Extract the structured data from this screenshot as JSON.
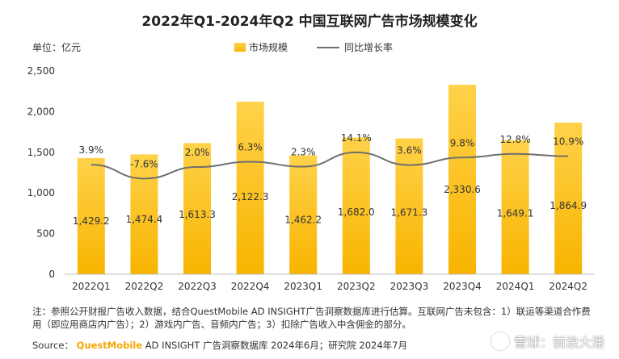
{
  "header": {
    "title": "2022年Q1-2024年Q2 中国互联网广告市场规模变化",
    "unit": "单位：亿元"
  },
  "legend": {
    "bar_label": "市场规模",
    "line_label": "同比增长率"
  },
  "chart_data": {
    "type": "bar",
    "title": "2022年Q1-2024年Q2 中国互联网广告市场规模变化",
    "categories": [
      "2022Q1",
      "2022Q2",
      "2022Q3",
      "2022Q4",
      "2023Q1",
      "2023Q2",
      "2023Q3",
      "2023Q4",
      "2024Q1",
      "2024Q2"
    ],
    "series": [
      {
        "name": "市场规模",
        "type": "bar",
        "values": [
          1429.2,
          1474.4,
          1613.3,
          2122.3,
          1462.2,
          1682.0,
          1671.3,
          2330.6,
          1649.1,
          1864.9
        ],
        "labels": [
          "1,429.2",
          "1,474.4",
          "1,613.3",
          "2,122.3",
          "1,462.2",
          "1,682.0",
          "1,671.3",
          "2,330.6",
          "1,649.1",
          "1,864.9"
        ]
      },
      {
        "name": "同比增长率",
        "type": "line",
        "values": [
          3.9,
          -7.6,
          2.0,
          6.3,
          2.3,
          14.1,
          3.6,
          9.8,
          12.8,
          10.9
        ],
        "labels": [
          "3.9%",
          "-7.6%",
          "2.0%",
          "6.3%",
          "2.3%",
          "14.1%",
          "3.6%",
          "9.8%",
          "12.8%",
          "10.9%"
        ]
      }
    ],
    "ylim": [
      0,
      2500
    ],
    "yticks": [
      0,
      500,
      1000,
      1500,
      2000,
      2500
    ],
    "ytick_labels": [
      "0",
      "500",
      "1,000",
      "1,500",
      "2,000",
      "2,500"
    ],
    "grid": false,
    "legend_position": "top-center",
    "colors": {
      "bar_top": "#ffd24a",
      "bar_bottom": "#f8b400",
      "line": "#6f6f6f"
    }
  },
  "footer": {
    "note": "注：参照公开财报广告收入数据，结合QuestMobile AD INSIGHT广告洞察数据库进行估算。互联网广告未包含：1）联运等渠道合作费用（即应用商店内广告）；2）游戏内广告、音频内广告；3）扣除广告收入中含佣金的部分。",
    "source_prefix": "Source：",
    "source_brand": "QuestMobile",
    "source_rest": "AD INSIGHT 广告洞察数据库 2024年6月；研究院 2024年7月",
    "watermark": "雪球：前浪大潘"
  }
}
